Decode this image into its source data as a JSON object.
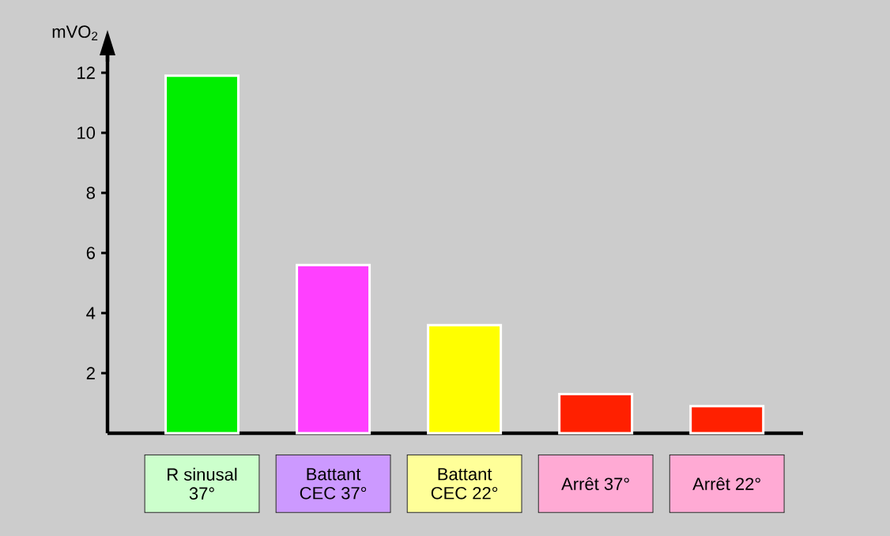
{
  "chart_data": {
    "type": "bar",
    "ylabel": "mVO$_{2}$",
    "categories": [
      "R sinusal 37°",
      "Battant CEC 37°",
      "Battant CEC 22°",
      "Arrêt 37°",
      "Arrêt 22°"
    ],
    "values": [
      11.9,
      5.6,
      3.6,
      1.3,
      0.9
    ],
    "colors": [
      "#00ee00",
      "#ff40ff",
      "#ffff00",
      "#ff2000",
      "#ff2000"
    ],
    "ylim": [
      0,
      13
    ],
    "yticks": [
      2,
      4,
      6,
      8,
      10,
      12
    ],
    "grid": false
  }
}
